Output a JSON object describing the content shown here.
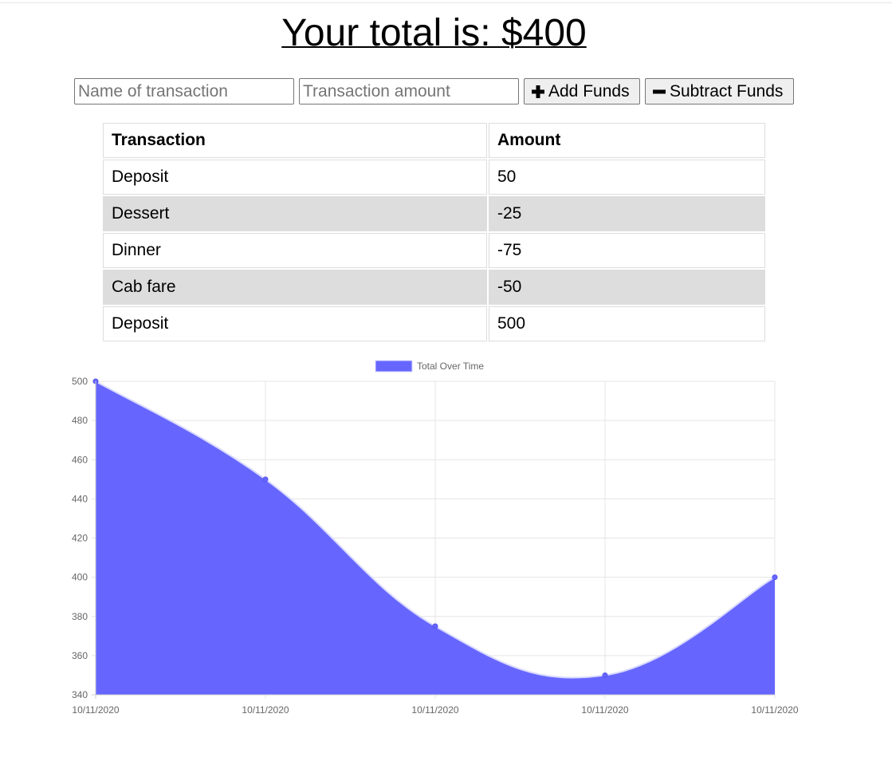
{
  "header": {
    "total_text": "Your total is: $400"
  },
  "form": {
    "name_placeholder": "Name of transaction",
    "amount_placeholder": "Transaction amount",
    "add_label": "Add Funds",
    "subtract_label": "Subtract Funds",
    "add_icon": "plus-icon",
    "subtract_icon": "minus-icon"
  },
  "table": {
    "headers": [
      "Transaction",
      "Amount"
    ],
    "rows": [
      {
        "name": "Deposit",
        "amount": "50"
      },
      {
        "name": "Dessert",
        "amount": "-25"
      },
      {
        "name": "Dinner",
        "amount": "-75"
      },
      {
        "name": "Cab fare",
        "amount": "-50"
      },
      {
        "name": "Deposit",
        "amount": "500"
      }
    ]
  },
  "chart_data": {
    "type": "area",
    "title": "",
    "xlabel": "",
    "ylabel": "",
    "categories": [
      "10/11/2020",
      "10/11/2020",
      "10/11/2020",
      "10/11/2020",
      "10/11/2020"
    ],
    "series": [
      {
        "name": "Total Over Time",
        "values": [
          500,
          450,
          375,
          350,
          400
        ],
        "color": "#6666ff"
      }
    ],
    "ylim": [
      340,
      500
    ],
    "yticks": [
      500,
      480,
      460,
      440,
      420,
      400,
      380,
      360,
      340
    ],
    "grid": true,
    "legend": "top-center",
    "smooth": true
  }
}
